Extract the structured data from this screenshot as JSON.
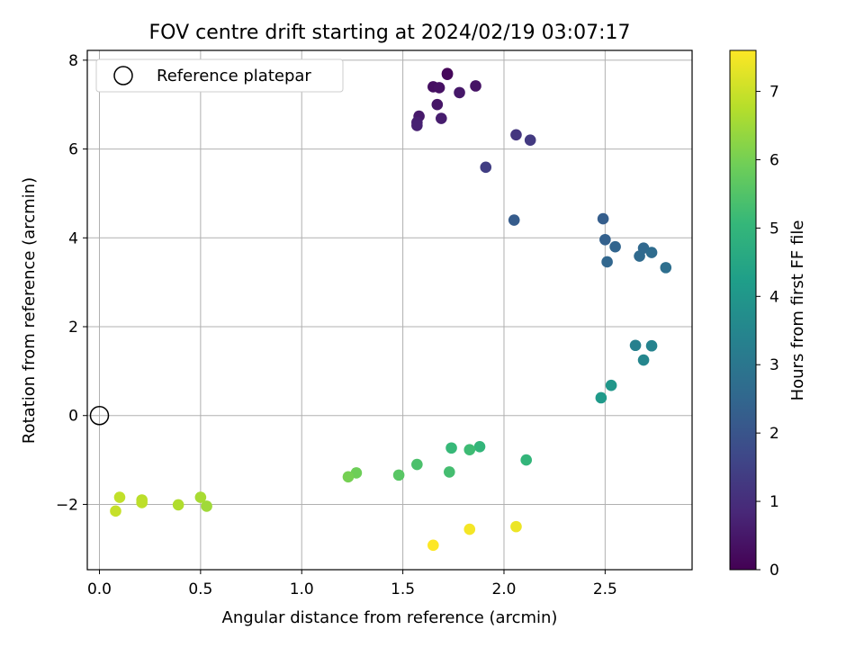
{
  "chart_data": {
    "type": "scatter",
    "title": "FOV centre drift starting at 2024/02/19 03:07:17",
    "xlabel": "Angular distance from reference (arcmin)",
    "ylabel": "Rotation from reference (arcmin)",
    "xlim": [
      -0.06,
      2.93
    ],
    "ylim": [
      -3.47,
      8.22
    ],
    "xticks": [
      0.0,
      0.5,
      1.0,
      1.5,
      2.0,
      2.5
    ],
    "xtick_labels": [
      "0.0",
      "0.5",
      "1.0",
      "1.5",
      "2.0",
      "2.5"
    ],
    "yticks": [
      -2,
      0,
      2,
      4,
      6,
      8
    ],
    "ytick_labels": [
      "−2",
      "0",
      "2",
      "4",
      "6",
      "8"
    ],
    "grid": true,
    "legend": {
      "placement": "top-left",
      "entries": [
        "Reference platepar"
      ]
    },
    "reference_point": {
      "x": 0.0,
      "y": 0.0,
      "marker": "open-circle"
    },
    "colorbar": {
      "label": "Hours from first FF file",
      "range": [
        0,
        7.6
      ],
      "ticks": [
        0,
        1,
        2,
        3,
        4,
        5,
        6,
        7
      ],
      "tick_labels": [
        "0",
        "1",
        "2",
        "3",
        "4",
        "5",
        "6",
        "7"
      ],
      "colormap": "viridis"
    },
    "colormap_stops": [
      "#440154",
      "#482878",
      "#3e4989",
      "#31688e",
      "#26828e",
      "#1f9e89",
      "#35b779",
      "#6ece58",
      "#b5de2b",
      "#fde725"
    ],
    "points": [
      {
        "x": 1.72,
        "y": 7.7,
        "c": 0.05
      },
      {
        "x": 1.72,
        "y": 7.68,
        "c": 0.15
      },
      {
        "x": 1.65,
        "y": 7.4,
        "c": 0.3
      },
      {
        "x": 1.68,
        "y": 7.38,
        "c": 0.35
      },
      {
        "x": 1.86,
        "y": 7.42,
        "c": 0.4
      },
      {
        "x": 1.78,
        "y": 7.27,
        "c": 0.5
      },
      {
        "x": 1.67,
        "y": 7.0,
        "c": 0.45
      },
      {
        "x": 1.58,
        "y": 6.74,
        "c": 0.55
      },
      {
        "x": 1.69,
        "y": 6.69,
        "c": 0.6
      },
      {
        "x": 1.57,
        "y": 6.6,
        "c": 0.65
      },
      {
        "x": 1.57,
        "y": 6.53,
        "c": 0.7
      },
      {
        "x": 2.06,
        "y": 6.32,
        "c": 1.2
      },
      {
        "x": 2.13,
        "y": 6.2,
        "c": 1.3
      },
      {
        "x": 1.91,
        "y": 5.59,
        "c": 1.4
      },
      {
        "x": 2.05,
        "y": 4.4,
        "c": 2.2
      },
      {
        "x": 2.49,
        "y": 4.43,
        "c": 2.25
      },
      {
        "x": 2.5,
        "y": 3.96,
        "c": 2.35
      },
      {
        "x": 2.55,
        "y": 3.8,
        "c": 2.45
      },
      {
        "x": 2.51,
        "y": 3.46,
        "c": 2.5
      },
      {
        "x": 2.69,
        "y": 3.77,
        "c": 2.55
      },
      {
        "x": 2.73,
        "y": 3.67,
        "c": 2.65
      },
      {
        "x": 2.67,
        "y": 3.59,
        "c": 2.6
      },
      {
        "x": 2.8,
        "y": 3.33,
        "c": 2.75
      },
      {
        "x": 2.65,
        "y": 1.58,
        "c": 3.3
      },
      {
        "x": 2.73,
        "y": 1.57,
        "c": 3.4
      },
      {
        "x": 2.69,
        "y": 1.25,
        "c": 3.5
      },
      {
        "x": 2.53,
        "y": 0.68,
        "c": 4.0
      },
      {
        "x": 2.48,
        "y": 0.4,
        "c": 4.1
      },
      {
        "x": 2.11,
        "y": -1.0,
        "c": 5.0
      },
      {
        "x": 1.74,
        "y": -0.73,
        "c": 5.1
      },
      {
        "x": 1.88,
        "y": -0.7,
        "c": 5.0
      },
      {
        "x": 1.83,
        "y": -0.77,
        "c": 5.2
      },
      {
        "x": 1.73,
        "y": -1.27,
        "c": 5.3
      },
      {
        "x": 1.57,
        "y": -1.1,
        "c": 5.4
      },
      {
        "x": 1.48,
        "y": -1.34,
        "c": 5.6
      },
      {
        "x": 1.27,
        "y": -1.29,
        "c": 5.9
      },
      {
        "x": 1.23,
        "y": -1.38,
        "c": 6.0
      },
      {
        "x": 0.53,
        "y": -2.04,
        "c": 6.5
      },
      {
        "x": 0.5,
        "y": -1.84,
        "c": 6.6
      },
      {
        "x": 0.39,
        "y": -2.01,
        "c": 6.7
      },
      {
        "x": 0.21,
        "y": -1.9,
        "c": 6.8
      },
      {
        "x": 0.21,
        "y": -1.96,
        "c": 6.85
      },
      {
        "x": 0.1,
        "y": -1.84,
        "c": 6.9
      },
      {
        "x": 0.08,
        "y": -2.15,
        "c": 6.95
      },
      {
        "x": 2.06,
        "y": -2.5,
        "c": 7.4
      },
      {
        "x": 1.83,
        "y": -2.56,
        "c": 7.5
      },
      {
        "x": 1.65,
        "y": -2.92,
        "c": 7.6
      }
    ]
  }
}
